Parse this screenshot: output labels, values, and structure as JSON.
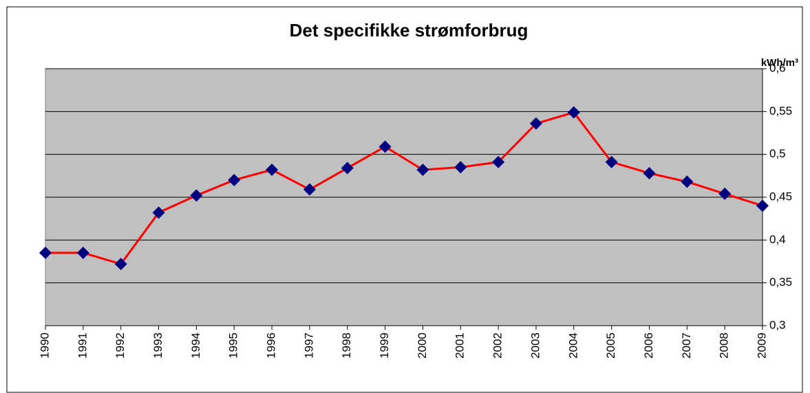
{
  "chart_data": {
    "type": "line",
    "title": "Det specifikke strømforbrug",
    "y_axis_label": "kWh/m³",
    "y_axis_side": "right",
    "categories": [
      "1990",
      "1991",
      "1992",
      "1993",
      "1994",
      "1995",
      "1996",
      "1997",
      "1998",
      "1999",
      "2000",
      "2001",
      "2002",
      "2003",
      "2004",
      "2005",
      "2006",
      "2007",
      "2008",
      "2009"
    ],
    "series": [
      {
        "name": "Det specifikke strømforbrug",
        "color": "#ff0000",
        "marker_color": "#000080",
        "values": [
          0.385,
          0.385,
          0.372,
          0.432,
          0.452,
          0.47,
          0.482,
          0.459,
          0.484,
          0.509,
          0.482,
          0.485,
          0.491,
          0.536,
          0.549,
          0.491,
          0.478,
          0.468,
          0.454,
          0.44
        ]
      }
    ],
    "ylim": [
      0.3,
      0.6
    ],
    "yticks": [
      {
        "value": 0.3,
        "label": "0,3"
      },
      {
        "value": 0.35,
        "label": "0,35"
      },
      {
        "value": 0.4,
        "label": "0,4"
      },
      {
        "value": 0.45,
        "label": "0,45"
      },
      {
        "value": 0.5,
        "label": "0,5"
      },
      {
        "value": 0.55,
        "label": "0,55"
      },
      {
        "value": 0.6,
        "label": "0,6"
      }
    ],
    "grid": true,
    "plot_background": "#c0c0c0"
  }
}
